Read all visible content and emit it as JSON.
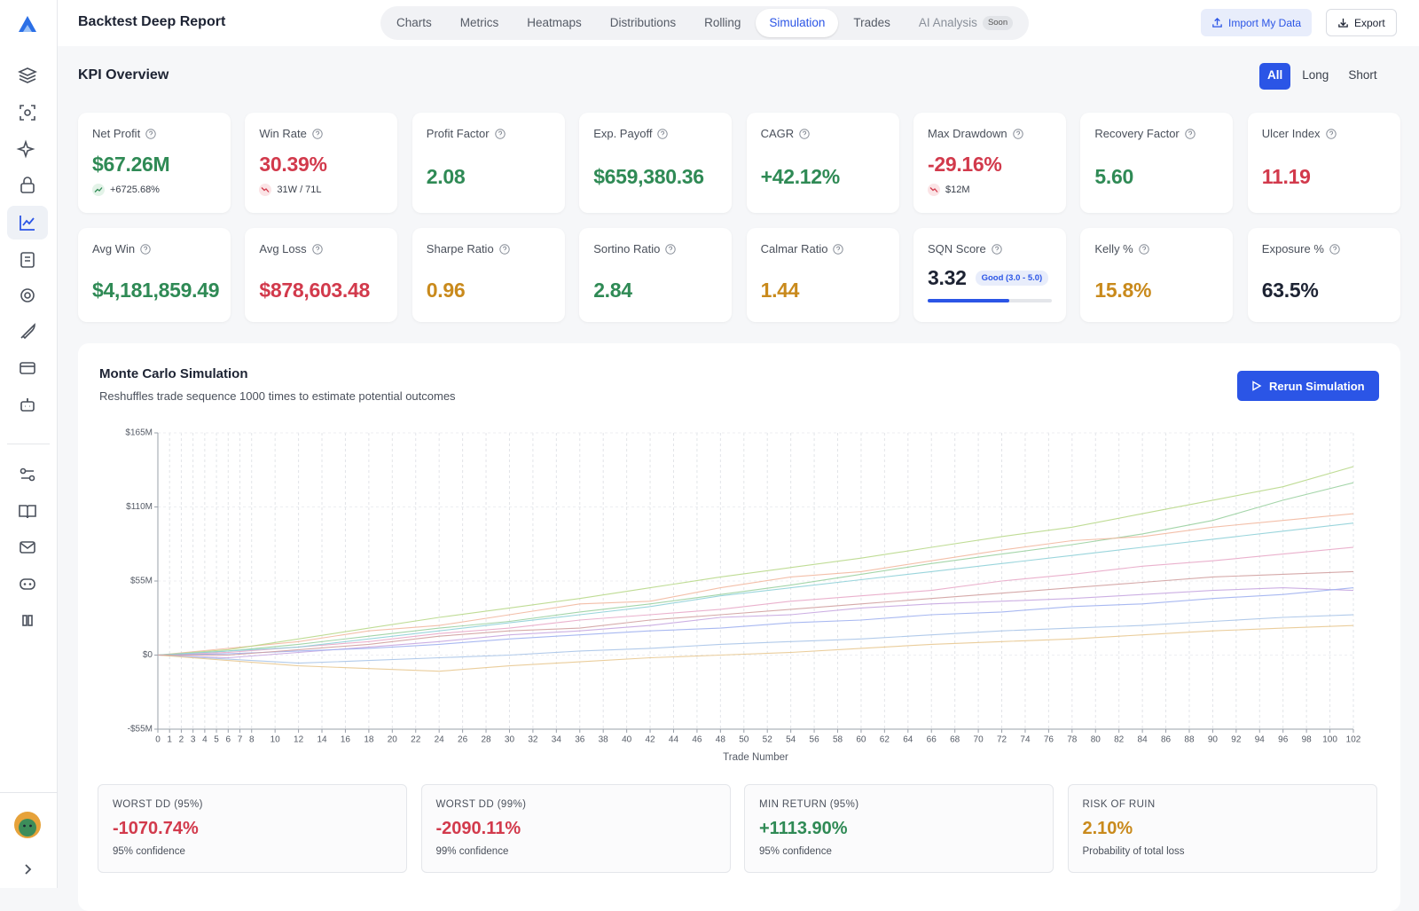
{
  "header": {
    "title": "Backtest Deep Report",
    "tabs": [
      "Charts",
      "Metrics",
      "Heatmaps",
      "Distributions",
      "Rolling",
      "Simulation",
      "Trades",
      "AI Analysis"
    ],
    "active_tab": 5,
    "soon_badge": "Soon",
    "import_button": "Import My Data",
    "export_button": "Export"
  },
  "kpi": {
    "title": "KPI Overview",
    "filters": [
      "All",
      "Long",
      "Short"
    ],
    "active_filter": 0,
    "cards": [
      {
        "label": "Net Profit",
        "value": "$67.26M",
        "color": "#2f8a55",
        "sub": "+6725.68%",
        "sub_trend": "up"
      },
      {
        "label": "Win Rate",
        "value": "30.39%",
        "color": "#d23a4c",
        "sub": "31W / 71L",
        "sub_trend": "down"
      },
      {
        "label": "Profit Factor",
        "value": "2.08",
        "color": "#2f8a55"
      },
      {
        "label": "Exp. Payoff",
        "value": "$659,380.36",
        "color": "#2f8a55"
      },
      {
        "label": "CAGR",
        "value": "+42.12%",
        "color": "#2f8a55"
      },
      {
        "label": "Max Drawdown",
        "value": "-29.16%",
        "color": "#d23a4c",
        "sub": "$12M",
        "sub_trend": "down"
      },
      {
        "label": "Recovery Factor",
        "value": "5.60",
        "color": "#2f8a55"
      },
      {
        "label": "Ulcer Index",
        "value": "11.19",
        "color": "#d23a4c"
      },
      {
        "label": "Avg Win",
        "value": "$4,181,859.49",
        "color": "#2f8a55"
      },
      {
        "label": "Avg Loss",
        "value": "$878,603.48",
        "color": "#d23a4c"
      },
      {
        "label": "Sharpe Ratio",
        "value": "0.96",
        "color": "#c98a1c"
      },
      {
        "label": "Sortino Ratio",
        "value": "2.84",
        "color": "#2f8a55"
      },
      {
        "label": "Calmar Ratio",
        "value": "1.44",
        "color": "#c98a1c"
      },
      {
        "label": "SQN Score",
        "value": "3.32",
        "color": "#1d2333",
        "badge": "Good (3.0 - 5.0)"
      },
      {
        "label": "Kelly %",
        "value": "15.8%",
        "color": "#c98a1c"
      },
      {
        "label": "Exposure %",
        "value": "63.5%",
        "color": "#1d2333"
      }
    ]
  },
  "simulation": {
    "title": "Monte Carlo Simulation",
    "subtitle": "Reshuffles trade sequence 1000 times to estimate potential outcomes",
    "button": "Rerun Simulation",
    "stats": [
      {
        "label": "WORST DD (95%)",
        "value": "-1070.74%",
        "color": "#d23a4c",
        "note": "95% confidence"
      },
      {
        "label": "WORST DD (99%)",
        "value": "-2090.11%",
        "color": "#d23a4c",
        "note": "99% confidence"
      },
      {
        "label": "MIN RETURN (95%)",
        "value": "+1113.90%",
        "color": "#2f8a55",
        "note": "95% confidence"
      },
      {
        "label": "RISK OF RUIN",
        "value": "2.10%",
        "color": "#c98a1c",
        "note": "Probability of total loss"
      }
    ]
  },
  "chart_data": {
    "type": "line",
    "x_label": "Trade Number",
    "x": [
      0,
      6,
      12,
      18,
      24,
      30,
      36,
      42,
      48,
      54,
      60,
      66,
      72,
      78,
      84,
      90,
      96,
      102
    ],
    "xlim": [
      0,
      102
    ],
    "xticks": [
      0,
      1,
      2,
      3,
      4,
      5,
      6,
      7,
      8,
      10,
      12,
      14,
      16,
      18,
      20,
      22,
      24,
      26,
      28,
      30,
      32,
      34,
      36,
      38,
      40,
      42,
      44,
      46,
      48,
      50,
      52,
      54,
      56,
      58,
      60,
      62,
      64,
      66,
      68,
      70,
      72,
      74,
      76,
      78,
      80,
      82,
      84,
      86,
      88,
      90,
      92,
      94,
      96,
      98,
      100,
      102
    ],
    "ylim": [
      -55000000,
      165000000
    ],
    "yticks": [
      {
        "value": -55000000,
        "label": "-$55M"
      },
      {
        "value": 0,
        "label": "$0"
      },
      {
        "value": 55000000,
        "label": "$55M"
      },
      {
        "value": 110000000,
        "label": "$110M"
      },
      {
        "value": 165000000,
        "label": "$165M"
      }
    ],
    "grid": true,
    "series": [
      {
        "color": "#9ad0a0",
        "values": [
          0,
          3000000,
          8000000,
          14000000,
          20000000,
          25000000,
          32000000,
          38000000,
          45000000,
          52000000,
          60000000,
          68000000,
          75000000,
          82000000,
          90000000,
          100000000,
          115000000,
          128000000
        ]
      },
      {
        "color": "#c7a6e0",
        "values": [
          0,
          -2000000,
          2000000,
          6000000,
          10000000,
          15000000,
          18000000,
          22000000,
          28000000,
          30000000,
          35000000,
          38000000,
          40000000,
          42000000,
          45000000,
          48000000,
          50000000,
          48000000
        ]
      },
      {
        "color": "#f2b8a0",
        "values": [
          0,
          5000000,
          10000000,
          18000000,
          22000000,
          30000000,
          38000000,
          40000000,
          50000000,
          58000000,
          62000000,
          70000000,
          78000000,
          85000000,
          88000000,
          95000000,
          100000000,
          105000000
        ]
      },
      {
        "color": "#a8c4e8",
        "values": [
          0,
          -3000000,
          -6000000,
          -4000000,
          -2000000,
          0,
          3000000,
          5000000,
          8000000,
          10000000,
          12000000,
          15000000,
          18000000,
          20000000,
          22000000,
          25000000,
          28000000,
          30000000
        ]
      },
      {
        "color": "#e8a8c8",
        "values": [
          0,
          2000000,
          6000000,
          10000000,
          16000000,
          20000000,
          26000000,
          30000000,
          34000000,
          40000000,
          44000000,
          48000000,
          55000000,
          60000000,
          66000000,
          70000000,
          75000000,
          80000000
        ]
      },
      {
        "color": "#b8d88a",
        "values": [
          0,
          4000000,
          12000000,
          20000000,
          28000000,
          35000000,
          42000000,
          50000000,
          58000000,
          65000000,
          72000000,
          80000000,
          88000000,
          95000000,
          105000000,
          115000000,
          125000000,
          140000000
        ]
      },
      {
        "color": "#9fb0f0",
        "values": [
          0,
          1000000,
          3000000,
          5000000,
          8000000,
          12000000,
          15000000,
          18000000,
          20000000,
          24000000,
          26000000,
          30000000,
          32000000,
          36000000,
          38000000,
          42000000,
          45000000,
          50000000
        ]
      },
      {
        "color": "#e8c890",
        "values": [
          0,
          -4000000,
          -8000000,
          -10000000,
          -12000000,
          -8000000,
          -5000000,
          -2000000,
          0,
          2000000,
          5000000,
          8000000,
          10000000,
          12000000,
          15000000,
          18000000,
          20000000,
          22000000
        ]
      },
      {
        "color": "#8fd0d8",
        "values": [
          0,
          3000000,
          6000000,
          12000000,
          18000000,
          24000000,
          30000000,
          36000000,
          44000000,
          50000000,
          56000000,
          62000000,
          68000000,
          74000000,
          80000000,
          86000000,
          92000000,
          98000000
        ]
      },
      {
        "color": "#d0a0a0",
        "values": [
          0,
          0,
          4000000,
          8000000,
          14000000,
          18000000,
          20000000,
          26000000,
          30000000,
          34000000,
          38000000,
          42000000,
          46000000,
          50000000,
          54000000,
          58000000,
          60000000,
          62000000
        ]
      }
    ]
  }
}
